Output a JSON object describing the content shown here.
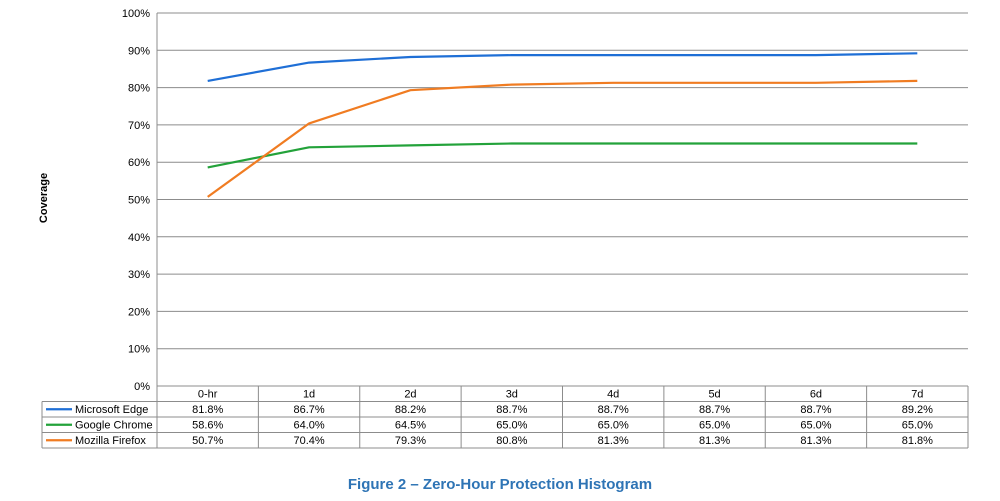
{
  "chart_data": {
    "type": "line",
    "ylabel": "Coverage",
    "ylim": [
      0,
      100
    ],
    "y_ticks": [
      "0%",
      "10%",
      "20%",
      "30%",
      "40%",
      "50%",
      "60%",
      "70%",
      "80%",
      "90%",
      "100%"
    ],
    "categories": [
      "0-hr",
      "1d",
      "2d",
      "3d",
      "4d",
      "5d",
      "6d",
      "7d"
    ],
    "grid": true,
    "data_table": true,
    "series": [
      {
        "name": "Microsoft Edge",
        "color": "#1f6fd6",
        "values": [
          81.8,
          86.7,
          88.2,
          88.7,
          88.7,
          88.7,
          88.7,
          89.2
        ],
        "labels": [
          "81.8%",
          "86.7%",
          "88.2%",
          "88.7%",
          "88.7%",
          "88.7%",
          "88.7%",
          "89.2%"
        ]
      },
      {
        "name": "Google Chrome",
        "color": "#23a23a",
        "values": [
          58.6,
          64.0,
          64.5,
          65.0,
          65.0,
          65.0,
          65.0,
          65.0
        ],
        "labels": [
          "58.6%",
          "64.0%",
          "64.5%",
          "65.0%",
          "65.0%",
          "65.0%",
          "65.0%",
          "65.0%"
        ]
      },
      {
        "name": "Mozilla Firefox",
        "color": "#f07c22",
        "values": [
          50.7,
          70.4,
          79.3,
          80.8,
          81.3,
          81.3,
          81.3,
          81.8
        ],
        "labels": [
          "50.7%",
          "70.4%",
          "79.3%",
          "80.8%",
          "81.3%",
          "81.3%",
          "81.3%",
          "81.8%"
        ]
      }
    ]
  },
  "caption": {
    "text": "Figure 2 – Zero-Hour Protection Histogram",
    "color": "#2e74b5"
  }
}
